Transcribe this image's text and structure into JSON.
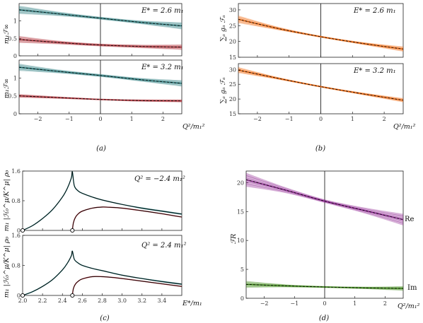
{
  "colors": {
    "teal": "#2e7f80",
    "red": "#b3363e",
    "orange": "#f06b12",
    "purple": "#8b1f8f",
    "green": "#3e8a18",
    "axis": "#222222"
  },
  "panels": {
    "a": {
      "caption": "(a)",
      "ylabel": "m₁ℱ∞",
      "xlabel": "Q²/m₁²",
      "top_ann": "E* = 2.6 m₁",
      "bottom_ann": "E* = 3.2 m₁"
    },
    "b": {
      "caption": "(b)",
      "ylabel": "∑ₐ gₐ ℱₐ",
      "xlabel": "Q²/m₁²",
      "top_ann": "E* = 2.6 m₁",
      "bottom_ann": "E* = 3.2 m₁"
    },
    "c": {
      "caption": "(c)",
      "ylabel_top": "m₁ |ℋ₀^μ/K^μ| ρ₀",
      "ylabel_bottom": "m₁ |ℋ₀^μ/K^μ| ρ₀",
      "xlabel": "E*/m₁",
      "top_ann": "Q² = −2.4 m₁²",
      "bottom_ann": "Q² = 2.4 m₁²"
    },
    "d": {
      "caption": "(d)",
      "ylabel": "ℱR",
      "xlabel": "Q²/m₁²",
      "re_label": "Re",
      "im_label": "Im"
    }
  },
  "chart_data": [
    {
      "id": "a-top",
      "type": "line",
      "xlim": [
        -2.6,
        2.6
      ],
      "ylim": [
        0,
        1.5
      ],
      "yticks": [
        0,
        0.5,
        1
      ],
      "xticks": [
        -2,
        -1,
        0,
        1,
        2
      ],
      "vline": 0,
      "series": [
        {
          "color": "teal",
          "x": [
            -2.6,
            -1.3,
            0,
            1.3,
            2.6
          ],
          "y": [
            1.32,
            1.2,
            1.08,
            0.96,
            0.86
          ],
          "band": [
            0.12,
            0.06,
            0.04,
            0.05,
            0.1
          ]
        },
        {
          "color": "red",
          "x": [
            -2.6,
            -1.3,
            0,
            1.3,
            2.6
          ],
          "y": [
            0.47,
            0.38,
            0.31,
            0.27,
            0.25
          ],
          "band": [
            0.1,
            0.05,
            0.04,
            0.05,
            0.08
          ]
        }
      ]
    },
    {
      "id": "a-bottom",
      "type": "line",
      "xlim": [
        -2.6,
        2.6
      ],
      "ylim": [
        0,
        1.5
      ],
      "yticks": [
        0,
        0.5,
        1
      ],
      "xticks": [
        -2,
        -1,
        0,
        1,
        2
      ],
      "xticklabels": [
        "−2",
        "−1",
        "0",
        "1",
        "2"
      ],
      "vline": 0,
      "series": [
        {
          "color": "teal",
          "x": [
            -2.6,
            -1.3,
            0,
            1.3,
            2.6
          ],
          "y": [
            1.3,
            1.18,
            1.07,
            0.95,
            0.85
          ],
          "band": [
            0.1,
            0.05,
            0.04,
            0.05,
            0.09
          ]
        },
        {
          "color": "red",
          "x": [
            -2.6,
            -1.3,
            0,
            1.3,
            2.6
          ],
          "y": [
            0.5,
            0.45,
            0.4,
            0.37,
            0.36
          ],
          "band": [
            0.05,
            0.03,
            0.02,
            0.03,
            0.04
          ]
        }
      ]
    },
    {
      "id": "b-top",
      "type": "line",
      "xlim": [
        -2.6,
        2.6
      ],
      "ylim": [
        15,
        32
      ],
      "yticks": [
        15,
        20,
        25,
        30
      ],
      "xticks": [
        -2,
        -1,
        0,
        1,
        2
      ],
      "vline": 0,
      "series": [
        {
          "color": "orange",
          "x": [
            -2.6,
            -1.3,
            0,
            1.3,
            2.6
          ],
          "y": [
            27.0,
            24.0,
            21.5,
            19.4,
            17.6
          ],
          "band": [
            1.2,
            0.5,
            0.3,
            0.4,
            0.8
          ]
        }
      ]
    },
    {
      "id": "b-bottom",
      "type": "line",
      "xlim": [
        -2.6,
        2.6
      ],
      "ylim": [
        15,
        32
      ],
      "yticks": [
        15,
        20,
        25,
        30
      ],
      "xticks": [
        -2,
        -1,
        0,
        1,
        2
      ],
      "xticklabels": [
        "−2",
        "−1",
        "0",
        "1",
        "2"
      ],
      "vline": 0,
      "series": [
        {
          "color": "orange",
          "x": [
            -2.6,
            -1.3,
            0,
            1.3,
            2.6
          ],
          "y": [
            29.8,
            26.9,
            24.2,
            21.8,
            19.6
          ],
          "band": [
            1.0,
            0.4,
            0.3,
            0.4,
            0.7
          ]
        }
      ]
    },
    {
      "id": "c-top",
      "type": "line",
      "xlim": [
        2.0,
        3.6
      ],
      "ylim": [
        0,
        1.6
      ],
      "yticks": [
        0,
        0.8,
        1.6
      ],
      "xticks": [
        2.0,
        2.2,
        2.4,
        2.6,
        2.8,
        3.0,
        3.2,
        3.4
      ],
      "open_points": [
        [
          2.0,
          0
        ],
        [
          2.5,
          0
        ]
      ],
      "series": [
        {
          "color": "teal",
          "x": [
            2.0,
            2.1,
            2.2,
            2.3,
            2.4,
            2.45,
            2.49,
            2.5,
            2.52,
            2.56,
            2.6,
            2.7,
            2.8,
            3.0,
            3.2,
            3.4,
            3.6
          ],
          "y": [
            0,
            0.13,
            0.32,
            0.56,
            0.9,
            1.14,
            1.42,
            1.58,
            1.2,
            1.06,
            1.0,
            0.9,
            0.82,
            0.7,
            0.6,
            0.52,
            0.44
          ],
          "band": [
            0,
            0.01,
            0.01,
            0.01,
            0.01,
            0.01,
            0.01,
            0.01,
            0.01,
            0.01,
            0.01,
            0.01,
            0.01,
            0.01,
            0.02,
            0.02,
            0.02
          ]
        },
        {
          "color": "red",
          "x": [
            2.5,
            2.51,
            2.53,
            2.56,
            2.6,
            2.7,
            2.8,
            2.9,
            3.0,
            3.2,
            3.4,
            3.6
          ],
          "y": [
            0,
            0.2,
            0.35,
            0.45,
            0.52,
            0.6,
            0.63,
            0.62,
            0.6,
            0.53,
            0.45,
            0.36
          ],
          "band": [
            0,
            0.01,
            0.01,
            0.01,
            0.01,
            0.01,
            0.01,
            0.01,
            0.01,
            0.01,
            0.01,
            0.01
          ]
        }
      ]
    },
    {
      "id": "c-bottom",
      "type": "line",
      "xlim": [
        2.0,
        3.6
      ],
      "ylim": [
        0,
        1.6
      ],
      "yticks": [
        0,
        0.8,
        1.6
      ],
      "xticks": [
        2.0,
        2.2,
        2.4,
        2.6,
        2.8,
        3.0,
        3.2,
        3.4
      ],
      "xticklabels": [
        "2.0",
        "2.2",
        "2.4",
        "2.6",
        "2.8",
        "3.0",
        "3.2",
        "3.4"
      ],
      "open_points": [
        [
          2.0,
          0
        ],
        [
          2.5,
          0
        ]
      ],
      "series": [
        {
          "color": "teal",
          "x": [
            2.0,
            2.1,
            2.2,
            2.3,
            2.4,
            2.45,
            2.49,
            2.5,
            2.52,
            2.56,
            2.6,
            2.7,
            2.8,
            3.0,
            3.2,
            3.4,
            3.6
          ],
          "y": [
            0,
            0.1,
            0.24,
            0.42,
            0.68,
            0.86,
            1.06,
            1.18,
            0.96,
            0.86,
            0.8,
            0.72,
            0.66,
            0.54,
            0.45,
            0.37,
            0.3
          ],
          "band": [
            0,
            0.01,
            0.01,
            0.01,
            0.01,
            0.01,
            0.01,
            0.01,
            0.01,
            0.01,
            0.01,
            0.01,
            0.01,
            0.01,
            0.01,
            0.02,
            0.02
          ]
        },
        {
          "color": "red",
          "x": [
            2.5,
            2.51,
            2.53,
            2.56,
            2.6,
            2.7,
            2.8,
            2.9,
            3.0,
            3.2,
            3.4,
            3.6
          ],
          "y": [
            0,
            0.18,
            0.3,
            0.38,
            0.44,
            0.5,
            0.5,
            0.48,
            0.45,
            0.38,
            0.31,
            0.24
          ],
          "band": [
            0,
            0.01,
            0.01,
            0.01,
            0.01,
            0.01,
            0.01,
            0.01,
            0.01,
            0.01,
            0.01,
            0.01
          ]
        }
      ]
    },
    {
      "id": "d",
      "type": "line",
      "xlim": [
        -2.6,
        2.6
      ],
      "ylim": [
        0,
        22
      ],
      "yticks": [
        0,
        5,
        10,
        15,
        20
      ],
      "xticks": [
        -2,
        -1,
        0,
        1,
        2
      ],
      "xticklabels": [
        "−2",
        "−1",
        "0",
        "1",
        "2"
      ],
      "vline": 0,
      "series": [
        {
          "color": "purple",
          "x": [
            -2.6,
            -1.3,
            0,
            1.3,
            2.6
          ],
          "y": [
            20.5,
            18.7,
            16.8,
            15.2,
            13.6
          ],
          "band": [
            1.2,
            0.5,
            0.3,
            0.5,
            1.0
          ]
        },
        {
          "color": "green",
          "x": [
            -2.6,
            -1.3,
            0,
            1.3,
            2.6
          ],
          "y": [
            2.4,
            2.15,
            1.95,
            1.8,
            1.7
          ],
          "band": [
            0.6,
            0.25,
            0.15,
            0.2,
            0.4
          ]
        }
      ]
    }
  ]
}
